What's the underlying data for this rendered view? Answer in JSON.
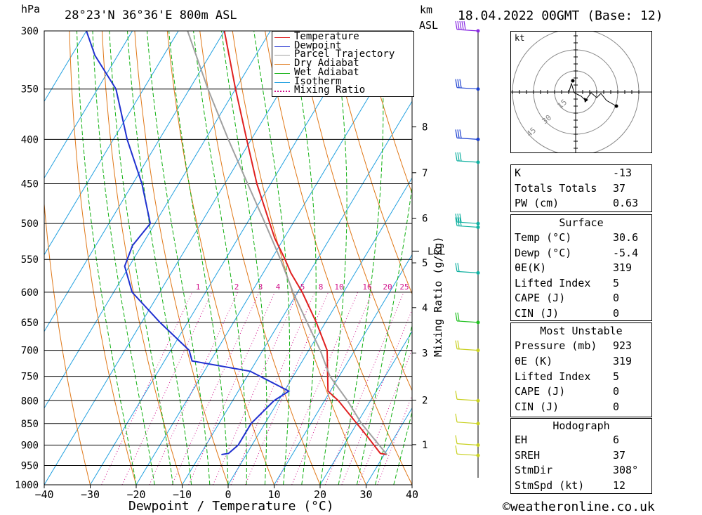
{
  "header": {
    "unit_hpa": "hPa",
    "location": "28°23'N  36°36'E  800m  ASL",
    "km_label": "km",
    "asl_label": "ASL",
    "datetime": "18.04.2022  00GMT  (Base: 12)"
  },
  "colors": {
    "temperature": "#e02020",
    "dewpoint": "#2030d0",
    "parcel": "#a0a0a0",
    "dry_adiabat": "#e07818",
    "wet_adiabat": "#10b010",
    "isotherm": "#20a0e0",
    "mixing_ratio": "#d0108a",
    "wind_violet": "#8a2be2",
    "wind_blue": "#1a3fd0",
    "wind_teal": "#10b0a0",
    "wind_green": "#20c020",
    "wind_yellow": "#c8d020"
  },
  "legend": [
    "Temperature",
    "Dewpoint",
    "Parcel Trajectory",
    "Dry Adiabat",
    "Wet Adiabat",
    "Isotherm",
    "Mixing Ratio"
  ],
  "chart_data": {
    "type": "line",
    "title": "Skew-T log-P",
    "xlabel": "Dewpoint / Temperature (°C)",
    "ylabel": "hPa",
    "xlim": [
      -40,
      40
    ],
    "ylim": [
      1000,
      300
    ],
    "x_ticks": [
      "−40",
      "−30",
      "−20",
      "−10",
      "0",
      "10",
      "20",
      "30",
      "40"
    ],
    "pressure_ticks": [
      "300",
      "350",
      "400",
      "450",
      "500",
      "550",
      "600",
      "650",
      "700",
      "750",
      "800",
      "850",
      "900",
      "950",
      "1000"
    ],
    "km_ticks": [
      "1",
      "2",
      "3",
      "4",
      "5",
      "6",
      "7",
      "8"
    ],
    "lcl_label": "LCL",
    "mixing_ratio_label": "Mixing Ratio (g/kg)",
    "mixing_ratio_ticks": [
      "1",
      "2",
      "3",
      "4",
      "5",
      "8",
      "10",
      "16",
      "20",
      "25"
    ],
    "series": [
      {
        "name": "Temperature",
        "points": [
          [
            923,
            30.6
          ],
          [
            920,
            29
          ],
          [
            880,
            24
          ],
          [
            850,
            20
          ],
          [
            800,
            13
          ],
          [
            780,
            9.5
          ],
          [
            700,
            4
          ],
          [
            650,
            -2
          ],
          [
            600,
            -9
          ],
          [
            570,
            -14
          ],
          [
            550,
            -17
          ],
          [
            520,
            -22
          ],
          [
            500,
            -25
          ],
          [
            450,
            -33
          ],
          [
            400,
            -41
          ],
          [
            350,
            -50
          ],
          [
            300,
            -60
          ]
        ]
      },
      {
        "name": "Dewpoint",
        "points": [
          [
            923,
            -5.4
          ],
          [
            920,
            -4
          ],
          [
            900,
            -3
          ],
          [
            850,
            -3
          ],
          [
            800,
            -1
          ],
          [
            780,
            1
          ],
          [
            740,
            -10
          ],
          [
            720,
            -24
          ],
          [
            700,
            -26
          ],
          [
            650,
            -36
          ],
          [
            600,
            -46
          ],
          [
            560,
            -51
          ],
          [
            530,
            -52
          ],
          [
            500,
            -51
          ],
          [
            450,
            -58
          ],
          [
            400,
            -67
          ],
          [
            350,
            -76
          ],
          [
            320,
            -85
          ],
          [
            300,
            -90
          ]
        ]
      },
      {
        "name": "Parcel Trajectory",
        "points": [
          [
            923,
            30.6
          ],
          [
            850,
            21
          ],
          [
            800,
            15
          ],
          [
            750,
            8
          ],
          [
            700,
            2.5
          ],
          [
            650,
            -4
          ],
          [
            600,
            -11
          ],
          [
            550,
            -18
          ],
          [
            500,
            -26
          ],
          [
            450,
            -35
          ],
          [
            400,
            -45
          ],
          [
            350,
            -56
          ],
          [
            300,
            -68
          ]
        ]
      }
    ]
  },
  "hodograph": {
    "unit": "kt",
    "rings": [
      "15",
      "30",
      "45"
    ]
  },
  "indices": [
    {
      "k": "K",
      "v": "-13"
    },
    {
      "k": "Totals Totals",
      "v": "37"
    },
    {
      "k": "PW (cm)",
      "v": "0.63"
    }
  ],
  "surface": {
    "title": "Surface",
    "rows": [
      {
        "k": "Temp (°C)",
        "v": "30.6"
      },
      {
        "k": "Dewp (°C)",
        "v": "-5.4"
      },
      {
        "k": "θE(K)",
        "v": "319"
      },
      {
        "k": "Lifted Index",
        "v": "5"
      },
      {
        "k": "CAPE (J)",
        "v": "0"
      },
      {
        "k": "CIN (J)",
        "v": "0"
      }
    ]
  },
  "most_unstable": {
    "title": "Most Unstable",
    "rows": [
      {
        "k": "Pressure (mb)",
        "v": "923"
      },
      {
        "k": "θE (K)",
        "v": "319"
      },
      {
        "k": "Lifted Index",
        "v": "5"
      },
      {
        "k": "CAPE (J)",
        "v": "0"
      },
      {
        "k": "CIN (J)",
        "v": "0"
      }
    ]
  },
  "hodograph_stats": {
    "title": "Hodograph",
    "rows": [
      {
        "k": "EH",
        "v": "6"
      },
      {
        "k": "SREH",
        "v": "37"
      },
      {
        "k": "StmDir",
        "v": "308°"
      },
      {
        "k": "StmSpd (kt)",
        "v": "12"
      }
    ]
  },
  "copyright": "©weatheronline.co.uk"
}
